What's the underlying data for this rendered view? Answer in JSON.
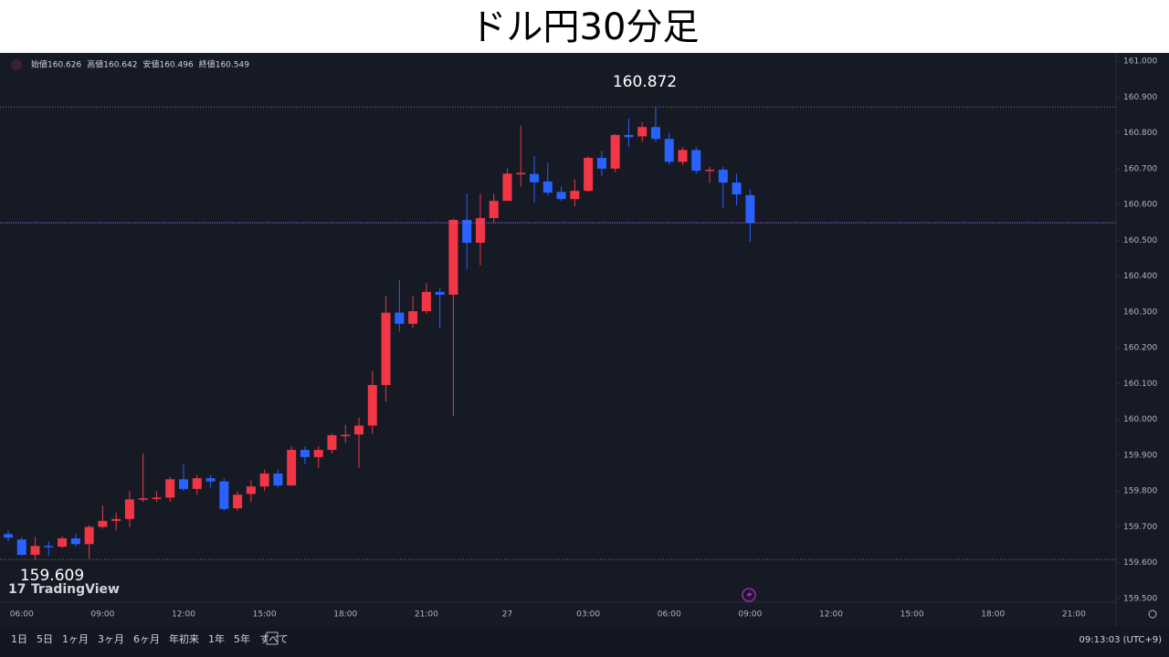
{
  "chart_data": {
    "type": "candlestick",
    "title": "ドル円30分足",
    "ohlc_legend": [
      {
        "label": "始値",
        "value": 160.626
      },
      {
        "label": "高値",
        "value": 160.642
      },
      {
        "label": "安値",
        "value": 160.496
      },
      {
        "label": "終値",
        "value": 160.549
      }
    ],
    "categories": [
      null,
      "06:00",
      null,
      null,
      null,
      null,
      null,
      "09:00",
      null,
      null,
      null,
      null,
      null,
      "12:00",
      null,
      null,
      null,
      null,
      null,
      "15:00",
      null,
      null,
      null,
      null,
      null,
      "18:00",
      null,
      null,
      null,
      null,
      null,
      "21:00",
      null,
      null,
      null,
      null,
      null,
      "27",
      null,
      null,
      null,
      null,
      null,
      "03:00",
      null,
      null,
      null,
      null,
      null,
      "06:00",
      null,
      null,
      null,
      null,
      null,
      "09:00",
      null,
      null,
      null,
      null,
      null,
      "12:00",
      null,
      null,
      null,
      null,
      null,
      "15:00",
      null,
      null,
      null,
      null,
      null,
      "18:00",
      null,
      null,
      null,
      null,
      null,
      "21:00",
      null,
      null,
      null
    ],
    "series": [
      {
        "up_color": "#f23645",
        "down_color": "#2962ff",
        "open": [
          159.68,
          159.665,
          159.622,
          159.647,
          159.645,
          159.668,
          159.652,
          159.7,
          159.717,
          159.722,
          159.777,
          159.778,
          159.782,
          159.833,
          159.806,
          159.836,
          159.827,
          159.752,
          159.792,
          159.813,
          159.849,
          159.816,
          159.915,
          159.895,
          159.915,
          159.956,
          159.958,
          159.983,
          160.096,
          160.298,
          160.267,
          160.302,
          160.356,
          160.348,
          160.557,
          160.493,
          160.562,
          160.61,
          160.686,
          160.685,
          160.664,
          160.635,
          160.615,
          160.638,
          160.73,
          160.7,
          160.794,
          160.79,
          160.816,
          160.783,
          160.719,
          160.752,
          160.696,
          160.697,
          160.661,
          160.626,
          null,
          null,
          null,
          null,
          null,
          null,
          null,
          null,
          null,
          null,
          null,
          null,
          null,
          null,
          null,
          null,
          null,
          null,
          null,
          null,
          null,
          null,
          null,
          null,
          null,
          null,
          null
        ],
        "high": [
          159.69,
          159.672,
          159.672,
          159.66,
          159.675,
          159.68,
          159.705,
          159.76,
          159.74,
          159.8,
          159.905,
          159.8,
          159.84,
          159.875,
          159.845,
          159.845,
          159.835,
          159.8,
          159.83,
          159.86,
          159.86,
          159.925,
          159.925,
          159.925,
          159.96,
          159.985,
          160.005,
          160.135,
          160.345,
          160.39,
          160.345,
          160.38,
          160.368,
          160.56,
          160.63,
          160.63,
          160.63,
          160.7,
          160.82,
          160.735,
          160.715,
          160.65,
          160.67,
          160.735,
          160.75,
          160.797,
          160.84,
          160.83,
          160.872,
          160.8,
          160.76,
          160.76,
          160.705,
          160.705,
          160.685,
          160.642,
          null,
          null,
          null,
          null,
          null,
          null,
          null,
          null,
          null,
          null,
          null,
          null,
          null,
          null,
          null,
          null,
          null,
          null,
          null,
          null,
          null,
          null,
          null,
          null,
          null,
          null,
          null
        ],
        "low": [
          159.66,
          159.62,
          159.609,
          159.62,
          159.64,
          159.645,
          159.612,
          159.695,
          159.69,
          159.7,
          159.77,
          159.77,
          159.77,
          159.8,
          159.79,
          159.81,
          159.745,
          159.745,
          159.77,
          159.8,
          159.81,
          159.815,
          159.875,
          159.865,
          159.905,
          159.935,
          159.865,
          159.96,
          160.05,
          160.245,
          160.255,
          160.295,
          160.255,
          160.01,
          160.42,
          160.43,
          160.548,
          160.61,
          160.65,
          160.605,
          160.625,
          160.61,
          160.595,
          160.635,
          160.68,
          160.69,
          160.76,
          160.775,
          160.775,
          160.71,
          160.71,
          160.685,
          160.66,
          160.59,
          160.597,
          160.496,
          null,
          null,
          null,
          null,
          null,
          null,
          null,
          null,
          null,
          null,
          null,
          null,
          null,
          null,
          null,
          null,
          null,
          null,
          null,
          null,
          null,
          null,
          null,
          null,
          null,
          null,
          null
        ],
        "close": [
          159.67,
          159.622,
          159.647,
          159.645,
          159.668,
          159.652,
          159.7,
          159.717,
          159.722,
          159.777,
          159.78,
          159.782,
          159.833,
          159.806,
          159.836,
          159.827,
          159.75,
          159.79,
          159.813,
          159.849,
          159.816,
          159.915,
          159.895,
          159.915,
          159.956,
          159.957,
          159.983,
          160.096,
          160.298,
          160.267,
          160.302,
          160.356,
          160.348,
          160.557,
          160.493,
          160.562,
          160.61,
          160.686,
          160.688,
          160.662,
          160.633,
          160.615,
          160.638,
          160.73,
          160.7,
          160.794,
          160.788,
          160.816,
          160.783,
          160.719,
          160.752,
          160.694,
          160.697,
          160.661,
          160.628,
          160.549,
          null,
          null,
          null,
          null,
          null,
          null,
          null,
          null,
          null,
          null,
          null,
          null,
          null,
          null,
          null,
          null,
          null,
          null,
          null,
          null,
          null,
          null,
          null,
          null,
          null,
          null,
          null
        ]
      }
    ],
    "ylim": [
      159.5,
      161
    ],
    "yticks": [
      {
        "value": 159.5,
        "label": "159.500"
      },
      {
        "value": 159.6,
        "label": "159.600"
      },
      {
        "value": 159.7,
        "label": "159.700"
      },
      {
        "value": 159.8,
        "label": "159.800"
      },
      {
        "value": 159.9,
        "label": "159.900"
      },
      {
        "value": 160,
        "label": "160.000"
      },
      {
        "value": 160.1,
        "label": "160.100"
      },
      {
        "value": 160.2,
        "label": "160.200"
      },
      {
        "value": 160.3,
        "label": "160.300"
      },
      {
        "value": 160.4,
        "label": "160.400"
      },
      {
        "value": 160.5,
        "label": "160.500"
      },
      {
        "value": 160.6,
        "label": "160.600"
      },
      {
        "value": 160.7,
        "label": "160.700"
      },
      {
        "value": 160.8,
        "label": "160.800"
      },
      {
        "value": 160.9,
        "label": "160.900"
      },
      {
        "value": 161,
        "label": "161.000"
      }
    ],
    "grid": false,
    "annotations": [
      {
        "value": 160.872
      },
      {
        "value": 159.609
      }
    ],
    "watermark": "TradingView",
    "toolbar": {
      "ranges": [
        "1日",
        "5日",
        "1ヶ月",
        "3ヶ月",
        "6ヶ月",
        "年初来",
        "1年",
        "5年",
        "すべて"
      ],
      "clock": "09:13:03 (UTC+9)"
    }
  }
}
